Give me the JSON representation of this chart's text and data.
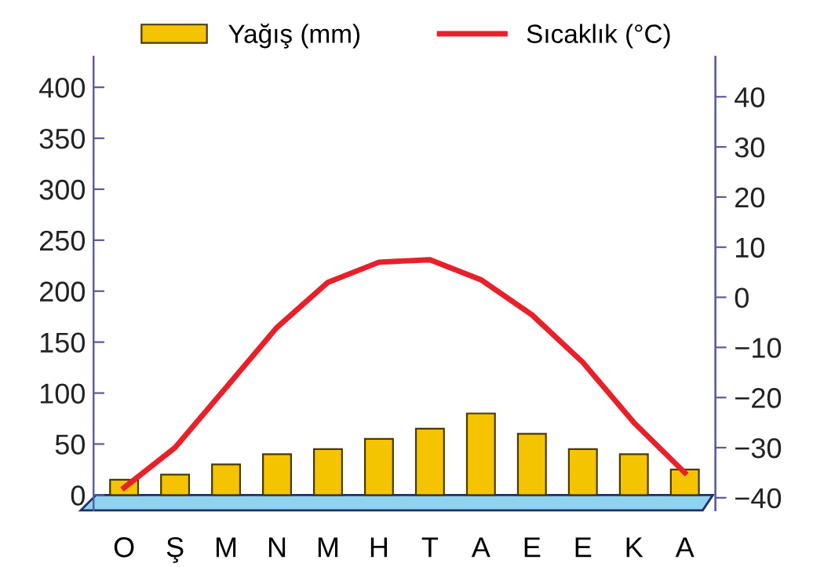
{
  "chart_data": {
    "type": "bar",
    "categories": [
      "O",
      "Ş",
      "M",
      "N",
      "M",
      "H",
      "T",
      "A",
      "E",
      "E",
      "K",
      "A"
    ],
    "series": [
      {
        "name": "Yağış (mm)",
        "color": "#f5c400",
        "values": [
          15,
          20,
          30,
          40,
          45,
          55,
          65,
          80,
          60,
          45,
          40,
          25
        ]
      },
      {
        "name": "Sıcaklık (°C)",
        "type": "line",
        "axis": "y2",
        "color": "#e8202a",
        "values": [
          -38,
          -30,
          -18,
          -6,
          3,
          7,
          7.5,
          3.5,
          -3.5,
          -13,
          -25,
          -35
        ]
      }
    ],
    "ylim": [
      -15,
      430
    ],
    "yticks": [
      0,
      50,
      100,
      150,
      200,
      250,
      300,
      350,
      400
    ],
    "y2lim": [
      -42.5,
      48
    ],
    "y2ticks": [
      {
        "value": -40,
        "label": "−40"
      },
      {
        "value": -30,
        "label": "−30"
      },
      {
        "value": -20,
        "label": "−20"
      },
      {
        "value": -10,
        "label": "−10"
      },
      0,
      10,
      20,
      30,
      40
    ],
    "legend": "top",
    "grid": false
  }
}
